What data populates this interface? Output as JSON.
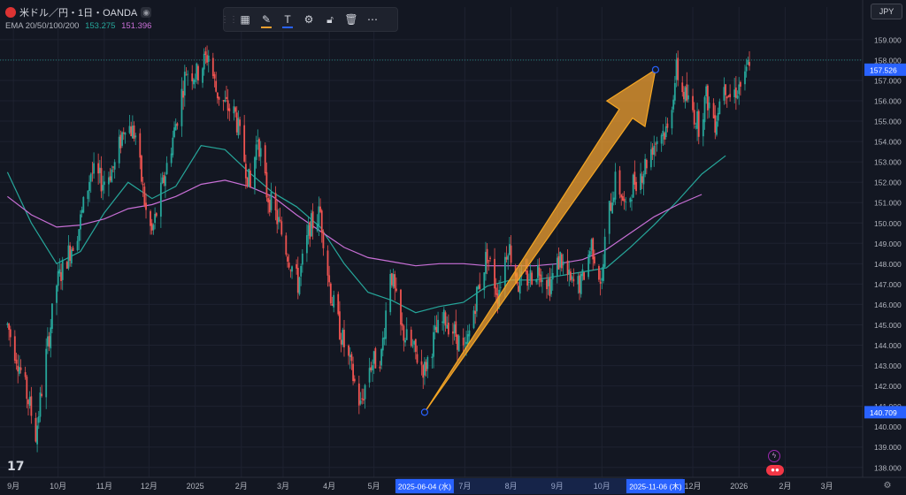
{
  "header": {
    "symbol_title": "米ドル／円・1日・OANDA",
    "ema_label": "EMA 20/50/100/200",
    "ema_value_1": "153.275",
    "ema_value_2": "151.396"
  },
  "currency_label": "JPY",
  "colors": {
    "background": "#131722",
    "up": "#26a69a",
    "down": "#ef5350",
    "ema_teal": "#26a69a",
    "ema_purple": "#c86fd6",
    "arrow": "#f0a030",
    "accent": "#2962ff",
    "text": "#d1d4dc"
  },
  "toolbar": {
    "icons": [
      "drag-grip-icon",
      "template-icon",
      "fill-color-icon",
      "text-icon",
      "settings-icon",
      "lock-icon",
      "delete-icon",
      "more-icon"
    ]
  },
  "chart_data": {
    "type": "candlestick",
    "title": "米ドル／円・1日・OANDA",
    "price_axis": {
      "ticks": [
        "159.000",
        "158.000",
        "157.000",
        "156.000",
        "155.000",
        "154.000",
        "153.000",
        "152.000",
        "151.000",
        "150.000",
        "149.000",
        "148.000",
        "147.000",
        "146.000",
        "145.000",
        "144.000",
        "143.000",
        "142.000",
        "141.000",
        "140.000",
        "139.000",
        "138.000"
      ],
      "ylim": [
        137.6,
        160.6
      ]
    },
    "time_axis": {
      "ticks": [
        "9月",
        "10月",
        "11月",
        "12月",
        "2025",
        "2月",
        "3月",
        "4月",
        "5月",
        "7月",
        "8月",
        "9月",
        "10月",
        "12月",
        "2026",
        "2月",
        "3月"
      ]
    },
    "current_price_label": "157.526",
    "current_price_value": 157.526,
    "dotted_level": 158.0,
    "crosshair_labels": {
      "start_date": "2025-06-04 (水)",
      "end_date": "2025-11-06 (木)",
      "start_price": "140.709"
    },
    "arrow_drawing": {
      "start": {
        "date": "2025-06-04",
        "price": 140.709
      },
      "end": {
        "date": "2025-11-06",
        "price": 157.526
      }
    },
    "series": [
      {
        "name": "EMA teal",
        "points": [
          [
            "2024-08-28",
            152.5
          ],
          [
            "2024-09-13",
            150.0
          ],
          [
            "2024-09-30",
            148.0
          ],
          [
            "2024-10-16",
            148.6
          ],
          [
            "2024-11-01",
            150.5
          ],
          [
            "2024-11-17",
            152.0
          ],
          [
            "2024-12-03",
            151.2
          ],
          [
            "2024-12-19",
            151.8
          ],
          [
            "2025-01-05",
            153.8
          ],
          [
            "2025-01-21",
            153.6
          ],
          [
            "2025-02-06",
            152.5
          ],
          [
            "2025-02-22",
            151.5
          ],
          [
            "2025-03-10",
            150.8
          ],
          [
            "2025-03-26",
            149.8
          ],
          [
            "2025-04-11",
            148.0
          ],
          [
            "2025-04-27",
            146.6
          ],
          [
            "2025-05-13",
            146.2
          ],
          [
            "2025-05-29",
            145.6
          ],
          [
            "2025-06-14",
            145.9
          ],
          [
            "2025-06-30",
            146.1
          ],
          [
            "2025-07-16",
            146.9
          ],
          [
            "2025-08-01",
            147.2
          ],
          [
            "2025-08-17",
            147.2
          ],
          [
            "2025-09-02",
            147.4
          ],
          [
            "2025-09-18",
            147.6
          ],
          [
            "2025-10-04",
            147.8
          ],
          [
            "2025-10-20",
            148.8
          ],
          [
            "2025-11-05",
            149.9
          ],
          [
            "2025-11-21",
            151.1
          ],
          [
            "2025-12-07",
            152.4
          ],
          [
            "2025-12-23",
            153.3
          ]
        ]
      },
      {
        "name": "EMA purple",
        "points": [
          [
            "2024-08-28",
            151.3
          ],
          [
            "2024-09-13",
            150.4
          ],
          [
            "2024-09-30",
            149.8
          ],
          [
            "2024-10-16",
            149.9
          ],
          [
            "2024-11-01",
            150.2
          ],
          [
            "2024-11-17",
            150.7
          ],
          [
            "2024-12-03",
            150.9
          ],
          [
            "2024-12-19",
            151.3
          ],
          [
            "2025-01-05",
            151.9
          ],
          [
            "2025-01-21",
            152.1
          ],
          [
            "2025-02-06",
            151.8
          ],
          [
            "2025-02-22",
            151.3
          ],
          [
            "2025-03-10",
            150.4
          ],
          [
            "2025-03-26",
            149.6
          ],
          [
            "2025-04-11",
            148.8
          ],
          [
            "2025-04-27",
            148.3
          ],
          [
            "2025-05-13",
            148.1
          ],
          [
            "2025-05-29",
            147.9
          ],
          [
            "2025-06-14",
            148.0
          ],
          [
            "2025-06-30",
            148.0
          ],
          [
            "2025-07-16",
            147.9
          ],
          [
            "2025-08-01",
            147.9
          ],
          [
            "2025-08-17",
            147.9
          ],
          [
            "2025-09-02",
            148.0
          ],
          [
            "2025-09-18",
            148.2
          ],
          [
            "2025-10-04",
            148.7
          ],
          [
            "2025-10-20",
            149.5
          ],
          [
            "2025-11-05",
            150.3
          ],
          [
            "2025-11-21",
            150.9
          ],
          [
            "2025-12-07",
            151.4
          ]
        ]
      }
    ],
    "candles_path": [
      [
        "2024-08-28",
        145.0
      ],
      [
        "2024-09-05",
        143.0
      ],
      [
        "2024-09-12",
        141.0
      ],
      [
        "2024-09-16",
        139.6
      ],
      [
        "2024-09-23",
        143.5
      ],
      [
        "2024-09-30",
        147.0
      ],
      [
        "2024-10-08",
        148.5
      ],
      [
        "2024-10-15",
        149.8
      ],
      [
        "2024-10-23",
        152.5
      ],
      [
        "2024-10-31",
        152.0
      ],
      [
        "2024-11-08",
        152.8
      ],
      [
        "2024-11-15",
        155.0
      ],
      [
        "2024-11-22",
        154.3
      ],
      [
        "2024-11-29",
        150.5
      ],
      [
        "2024-12-03",
        149.5
      ],
      [
        "2024-12-10",
        151.8
      ],
      [
        "2024-12-18",
        154.5
      ],
      [
        "2024-12-26",
        157.5
      ],
      [
        "2025-01-02",
        157.3
      ],
      [
        "2025-01-10",
        158.3
      ],
      [
        "2025-01-15",
        156.5
      ],
      [
        "2025-01-21",
        155.8
      ],
      [
        "2025-01-28",
        155.3
      ],
      [
        "2025-02-07",
        151.7
      ],
      [
        "2025-02-12",
        154.3
      ],
      [
        "2025-02-18",
        151.5
      ],
      [
        "2025-02-26",
        150.0
      ],
      [
        "2025-03-04",
        148.5
      ],
      [
        "2025-03-11",
        147.0
      ],
      [
        "2025-03-19",
        149.8
      ],
      [
        "2025-03-26",
        150.5
      ],
      [
        "2025-04-02",
        146.5
      ],
      [
        "2025-04-09",
        144.5
      ],
      [
        "2025-04-15",
        143.0
      ],
      [
        "2025-04-22",
        141.0
      ],
      [
        "2025-04-28",
        143.0
      ],
      [
        "2025-05-06",
        143.5
      ],
      [
        "2025-05-12",
        147.8
      ],
      [
        "2025-05-19",
        144.8
      ],
      [
        "2025-05-27",
        143.8
      ],
      [
        "2025-06-04",
        142.8
      ],
      [
        "2025-06-11",
        144.5
      ],
      [
        "2025-06-18",
        145.3
      ],
      [
        "2025-06-25",
        144.5
      ],
      [
        "2025-07-01",
        143.5
      ],
      [
        "2025-07-09",
        146.5
      ],
      [
        "2025-07-16",
        148.5
      ],
      [
        "2025-07-23",
        146.5
      ],
      [
        "2025-07-30",
        149.0
      ],
      [
        "2025-08-06",
        147.0
      ],
      [
        "2025-08-13",
        147.3
      ],
      [
        "2025-08-20",
        147.8
      ],
      [
        "2025-08-27",
        147.0
      ],
      [
        "2025-09-03",
        148.3
      ],
      [
        "2025-09-10",
        147.0
      ],
      [
        "2025-09-17",
        147.0
      ],
      [
        "2025-09-24",
        149.0
      ],
      [
        "2025-10-01",
        147.0
      ],
      [
        "2025-10-04",
        150.0
      ],
      [
        "2025-10-10",
        152.0
      ],
      [
        "2025-10-14",
        151.5
      ],
      [
        "2025-10-17",
        150.5
      ],
      [
        "2025-10-22",
        152.0
      ],
      [
        "2025-10-28",
        152.5
      ],
      [
        "2025-11-04",
        153.8
      ],
      [
        "2025-11-10",
        154.5
      ],
      [
        "2025-11-14",
        154.5
      ],
      [
        "2025-11-20",
        157.5
      ],
      [
        "2025-11-24",
        156.5
      ],
      [
        "2025-12-01",
        155.5
      ],
      [
        "2025-12-05",
        154.8
      ],
      [
        "2025-12-10",
        156.2
      ],
      [
        "2025-12-16",
        155.0
      ],
      [
        "2025-12-22",
        157.0
      ],
      [
        "2025-12-26",
        156.2
      ],
      [
        "2026-01-02",
        156.8
      ],
      [
        "2026-01-05",
        157.0
      ],
      [
        "2026-01-08",
        158.1
      ]
    ]
  }
}
